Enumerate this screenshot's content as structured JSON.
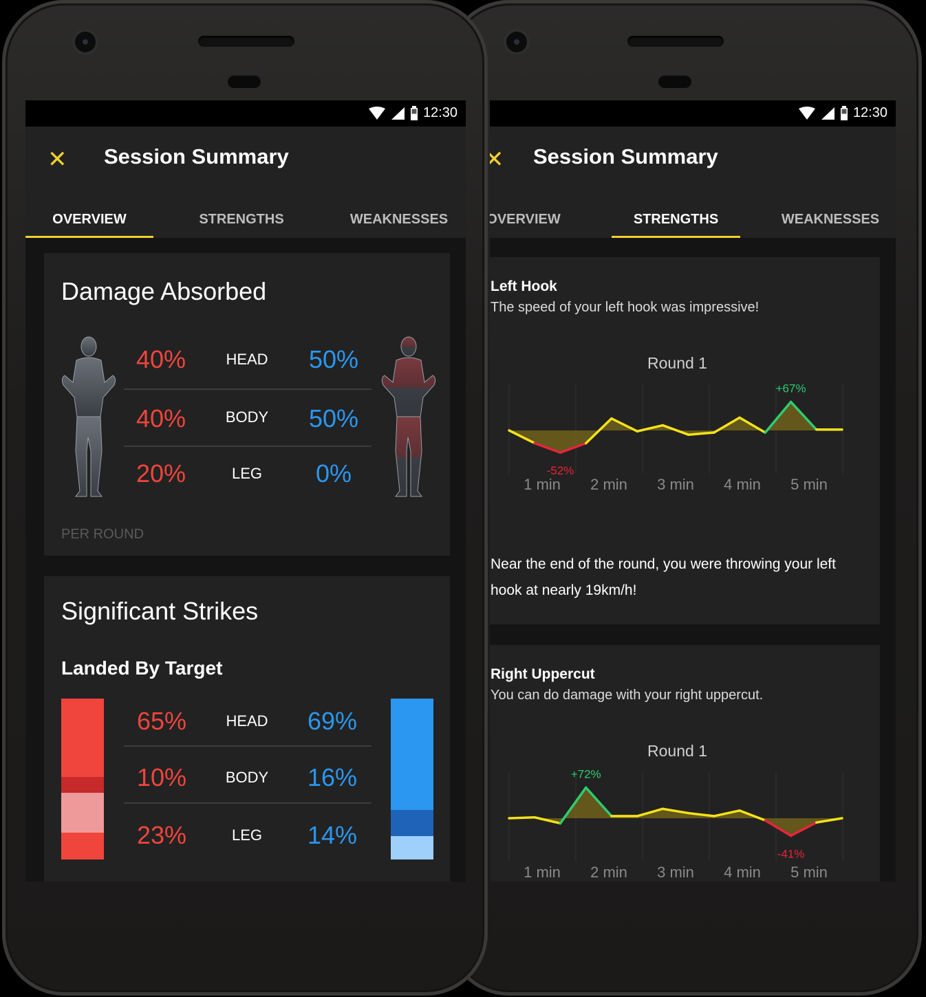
{
  "status": {
    "time": "12:30"
  },
  "appbar": {
    "title": "Session Summary",
    "tabs": [
      "OVERVIEW",
      "STRENGTHS",
      "WEAKNESSES"
    ]
  },
  "colors": {
    "accent": "#f2d12e",
    "red": "#f0453c",
    "blue": "#2b97f0",
    "positive": "#2ecc71",
    "negative": "#e8243a"
  },
  "overview": {
    "damage": {
      "title": "Damage Absorbed",
      "footer": "PER ROUND",
      "rows": [
        {
          "left": "40%",
          "label": "HEAD",
          "right": "50%"
        },
        {
          "left": "40%",
          "label": "BODY",
          "right": "50%"
        },
        {
          "left": "20%",
          "label": "LEG",
          "right": "0%"
        }
      ]
    },
    "strikes": {
      "title": "Significant Strikes",
      "subtitle": "Landed By Target",
      "rows": [
        {
          "left": "65%",
          "label": "HEAD",
          "right": "69%"
        },
        {
          "left": "10%",
          "label": "BODY",
          "right": "16%"
        },
        {
          "left": "23%",
          "label": "LEG",
          "right": "14%"
        }
      ]
    }
  },
  "strengths": {
    "cards": [
      {
        "title": "Left Hook",
        "subtitle": "The speed of your left hook was impressive!",
        "round": "Round 1",
        "peak_label": "+67%",
        "low_label": "-52%",
        "body": "Near the end of the round, you were throwing your left hook at nearly 19km/h!"
      },
      {
        "title": "Right Uppercut",
        "subtitle": "You can do damage with your right uppercut.",
        "round": "Round 1",
        "peak_label": "+72%",
        "low_label": "-41%"
      }
    ]
  },
  "chart_data": [
    {
      "type": "line",
      "title": "Round 1",
      "x_ticks": [
        "1 min",
        "2 min",
        "3 min",
        "4 min",
        "5 min"
      ],
      "x": [
        0,
        0.4,
        0.8,
        1.2,
        1.6,
        2.0,
        2.4,
        2.8,
        3.2,
        3.6,
        4.0,
        4.4,
        4.8,
        5.2
      ],
      "y": [
        0,
        -30,
        -52,
        -30,
        28,
        -2,
        12,
        -10,
        -5,
        30,
        -5,
        67,
        2,
        2
      ],
      "annotations": [
        {
          "text": "+67%",
          "value": 67
        },
        {
          "text": "-52%",
          "value": -52
        }
      ]
    },
    {
      "type": "line",
      "title": "Round 1",
      "x_ticks": [
        "1 min",
        "2 min",
        "3 min",
        "4 min",
        "5 min"
      ],
      "x": [
        0,
        0.4,
        0.8,
        1.2,
        1.6,
        2.0,
        2.4,
        2.8,
        3.2,
        3.6,
        4.0,
        4.4,
        4.8,
        5.2
      ],
      "y": [
        0,
        2,
        -12,
        72,
        5,
        5,
        22,
        12,
        5,
        18,
        -5,
        -41,
        -10,
        0
      ],
      "annotations": [
        {
          "text": "+72%",
          "value": 72
        },
        {
          "text": "-41%",
          "value": -41
        }
      ]
    }
  ]
}
